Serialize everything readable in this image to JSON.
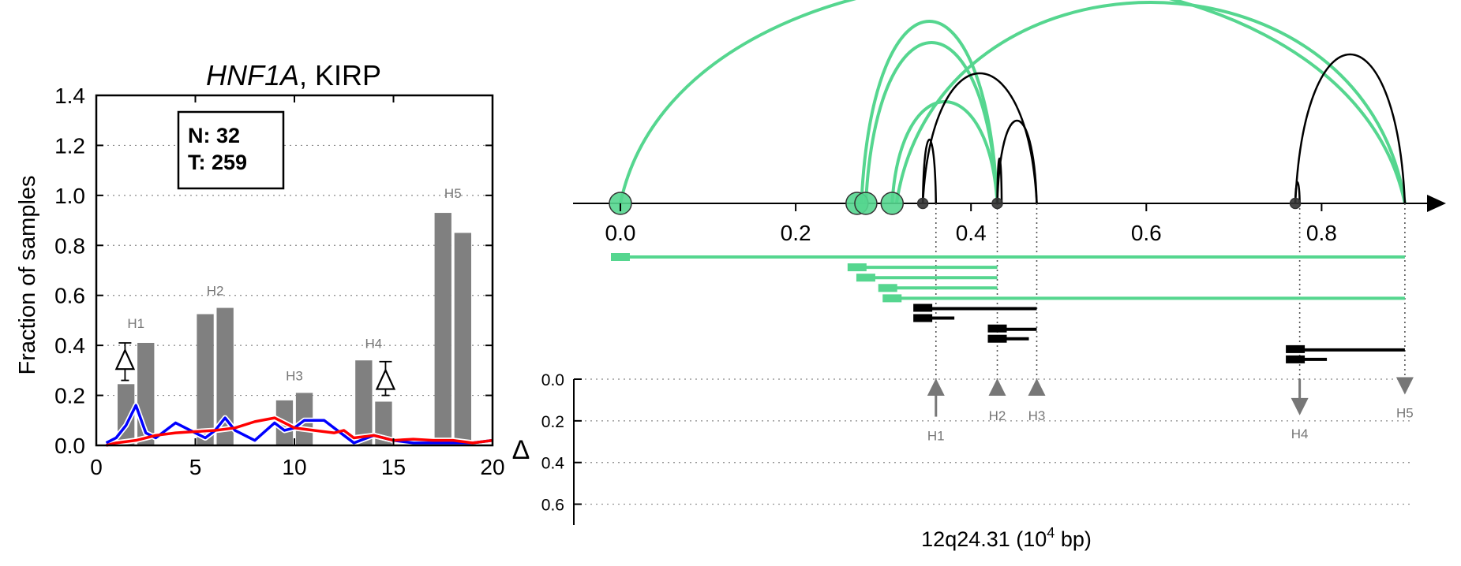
{
  "chart_data": [
    {
      "type": "bar",
      "title": "HNF1A, KIRP",
      "title_gene": "HNF1A",
      "title_rest": ", KIRP",
      "ylabel": "Fraction of samples",
      "xlabel": "",
      "xlim": [
        0,
        20
      ],
      "ylim": [
        0,
        1.4
      ],
      "x_ticks": [
        "0",
        "5",
        "10",
        "15",
        "20"
      ],
      "y_ticks": [
        "0.0",
        "0.2",
        "0.4",
        "0.6",
        "0.8",
        "1.0",
        "1.2",
        "1.4"
      ],
      "grid": "horizontal dotted",
      "legend_box": {
        "line1": "N: 32",
        "line2": "T: 259",
        "placement": "top-left"
      },
      "bars": [
        {
          "x": 1.5,
          "value": 0.245
        },
        {
          "x": 2.5,
          "value": 0.41
        },
        {
          "x": 5.5,
          "value": 0.525
        },
        {
          "x": 6.5,
          "value": 0.55
        },
        {
          "x": 9.5,
          "value": 0.18
        },
        {
          "x": 10.5,
          "value": 0.21
        },
        {
          "x": 13.5,
          "value": 0.34
        },
        {
          "x": 14.5,
          "value": 0.175
        },
        {
          "x": 17.5,
          "value": 0.93
        },
        {
          "x": 18.5,
          "value": 0.85
        }
      ],
      "hotspot_labels": [
        {
          "text": "H1",
          "x": 2.0,
          "y": 0.47
        },
        {
          "text": "H2",
          "x": 6.0,
          "y": 0.6
        },
        {
          "text": "H3",
          "x": 10.0,
          "y": 0.26
        },
        {
          "text": "H4",
          "x": 14.0,
          "y": 0.39
        },
        {
          "text": "H5",
          "x": 18.0,
          "y": 0.99
        }
      ],
      "delta_markers": [
        {
          "x": 1.45,
          "y": 0.34,
          "err_low": 0.26,
          "err_high": 0.41
        },
        {
          "x": 14.6,
          "y": 0.26,
          "err_low": 0.2,
          "err_high": 0.335
        }
      ],
      "series": [
        {
          "color": "#0000ff",
          "points": [
            [
              0.5,
              0.01
            ],
            [
              1,
              0.03
            ],
            [
              1.5,
              0.08
            ],
            [
              2,
              0.16
            ],
            [
              2.5,
              0.05
            ],
            [
              3,
              0.03
            ],
            [
              4,
              0.09
            ],
            [
              5,
              0.05
            ],
            [
              5.5,
              0.03
            ],
            [
              6,
              0.06
            ],
            [
              6.5,
              0.11
            ],
            [
              7,
              0.06
            ],
            [
              8,
              0.02
            ],
            [
              9,
              0.09
            ],
            [
              9.5,
              0.06
            ],
            [
              10,
              0.07
            ],
            [
              10.5,
              0.1
            ],
            [
              11,
              0.1
            ],
            [
              11.5,
              0.1
            ],
            [
              12,
              0.07
            ],
            [
              13,
              0.01
            ],
            [
              14,
              0.04
            ],
            [
              14.5,
              0.03
            ],
            [
              15,
              0.02
            ],
            [
              16,
              0.01
            ],
            [
              19,
              0.01
            ],
            [
              20,
              0.02
            ]
          ]
        },
        {
          "color": "#ff0000",
          "points": [
            [
              0.5,
              0.0
            ],
            [
              1,
              0.01
            ],
            [
              2,
              0.02
            ],
            [
              3,
              0.04
            ],
            [
              4,
              0.05
            ],
            [
              5,
              0.055
            ],
            [
              6,
              0.06
            ],
            [
              7,
              0.07
            ],
            [
              8,
              0.095
            ],
            [
              9,
              0.11
            ],
            [
              10,
              0.07
            ],
            [
              11,
              0.06
            ],
            [
              12,
              0.05
            ],
            [
              12.5,
              0.06
            ],
            [
              13,
              0.03
            ],
            [
              14,
              0.04
            ],
            [
              14.5,
              0.03
            ],
            [
              15,
              0.02
            ],
            [
              16,
              0.025
            ],
            [
              17,
              0.02
            ],
            [
              18,
              0.02
            ],
            [
              19,
              0.01
            ],
            [
              20,
              0.02
            ]
          ]
        }
      ],
      "colors": {
        "bars": "#808080",
        "blue": "#0000ff",
        "red": "#ff0000",
        "annot": "#777777"
      }
    },
    {
      "type": "diagram",
      "xlabel": "12q24.31 (10⁴ bp)",
      "xlabel_base": "12q24.31 (10",
      "xlabel_sup": "4",
      "xlabel_end": " bp)",
      "xlim": [
        -0.05,
        0.95
      ],
      "x_ticks": [
        "0.0",
        "0.2",
        "0.4",
        "0.6",
        "0.8"
      ],
      "delta_label": "Δ",
      "delta_ticks": [
        "0.0",
        "0.2",
        "0.4",
        "0.6"
      ],
      "delta_range": [
        0,
        0.7
      ],
      "colors": {
        "green": "#55d68f",
        "black": "#000000",
        "gray": "#777777"
      },
      "arcs": [
        {
          "from": 0.0,
          "to": 0.895,
          "height": 0.95,
          "color": "green"
        },
        {
          "from": 0.275,
          "to": 0.43,
          "height": 0.77,
          "color": "green"
        },
        {
          "from": 0.28,
          "to": 0.43,
          "height": 0.68,
          "color": "green"
        },
        {
          "from": 0.31,
          "to": 0.43,
          "height": 0.43,
          "color": "green"
        },
        {
          "from": 0.315,
          "to": 0.895,
          "height": 0.85,
          "color": "green"
        },
        {
          "from": 0.345,
          "to": 0.36,
          "height": 0.27,
          "color": "black"
        },
        {
          "from": 0.345,
          "to": 0.475,
          "height": 0.55,
          "color": "black"
        },
        {
          "from": 0.43,
          "to": 0.435,
          "height": 0.19,
          "color": "black"
        },
        {
          "from": 0.43,
          "to": 0.475,
          "height": 0.35,
          "color": "black"
        },
        {
          "from": 0.77,
          "to": 0.775,
          "height": 0.09,
          "color": "black"
        },
        {
          "from": 0.77,
          "to": 0.895,
          "height": 0.63,
          "color": "black"
        }
      ],
      "breakpoints": [
        {
          "x": 0.0,
          "size": "large",
          "color": "green"
        },
        {
          "x": 0.27,
          "size": "large",
          "color": "green"
        },
        {
          "x": 0.28,
          "size": "large",
          "color": "green"
        },
        {
          "x": 0.31,
          "size": "large",
          "color": "green"
        },
        {
          "x": 0.345,
          "size": "small",
          "color": "black"
        },
        {
          "x": 0.43,
          "size": "small",
          "color": "black"
        },
        {
          "x": 0.77,
          "size": "small",
          "color": "black"
        }
      ],
      "segments": [
        {
          "start": 0.0,
          "end": 0.895,
          "color": "green",
          "cap": "single",
          "row": 0
        },
        {
          "start": 0.27,
          "end": 0.43,
          "color": "green",
          "cap": "single",
          "row": 1
        },
        {
          "start": 0.28,
          "end": 0.43,
          "color": "green",
          "cap": "single",
          "row": 2
        },
        {
          "start": 0.305,
          "end": 0.43,
          "color": "green",
          "cap": "single",
          "row": 3
        },
        {
          "start": 0.31,
          "end": 0.895,
          "color": "green",
          "cap": "single",
          "row": 4
        },
        {
          "start": 0.345,
          "end": 0.475,
          "color": "black",
          "cap": "double",
          "row": 5
        },
        {
          "start": 0.43,
          "end": 0.475,
          "color": "black",
          "cap": "double",
          "row": 7
        },
        {
          "start": 0.77,
          "end": 0.895,
          "color": "black",
          "cap": "double",
          "row": 9
        }
      ],
      "hotspots": [
        {
          "label": "H1",
          "x": 0.36,
          "delta": 0.18,
          "direction": "up"
        },
        {
          "label": "H2",
          "x": 0.43,
          "delta": 0.05,
          "direction": "up"
        },
        {
          "label": "H3",
          "x": 0.475,
          "delta": 0.05,
          "direction": "up"
        },
        {
          "label": "H4",
          "x": 0.775,
          "delta": 0.17,
          "direction": "down"
        },
        {
          "label": "H5",
          "x": 0.895,
          "delta": 0.07,
          "direction": "down"
        }
      ]
    }
  ]
}
